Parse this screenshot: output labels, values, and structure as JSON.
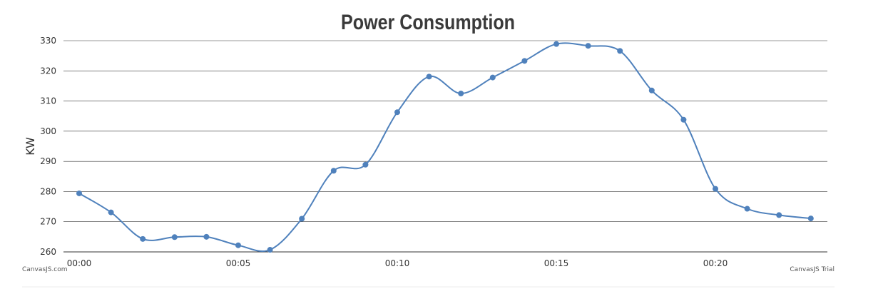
{
  "chart_data": {
    "type": "line",
    "title": "Power Consumption",
    "xlabel": "",
    "ylabel": "KW",
    "ylim": [
      260,
      330
    ],
    "yticks": [
      260,
      270,
      280,
      290,
      300,
      310,
      320,
      330
    ],
    "x_tick_labels": [
      "00:00",
      "00:05",
      "00:10",
      "00:15",
      "00:20"
    ],
    "x_tick_positions": [
      0,
      5,
      10,
      15,
      20
    ],
    "x": [
      "00:00",
      "00:01",
      "00:02",
      "00:03",
      "00:04",
      "00:05",
      "00:06",
      "00:07",
      "00:08",
      "00:09",
      "00:10",
      "00:11",
      "00:12",
      "00:13",
      "00:14",
      "00:15",
      "00:16",
      "00:17",
      "00:18",
      "00:19",
      "00:20",
      "00:21",
      "00:22",
      "00:23"
    ],
    "series": [
      {
        "values": [
          279.4,
          273.1,
          264.3,
          264.9,
          265.0,
          262.2,
          260.7,
          271.0,
          286.9,
          288.9,
          306.3,
          318.1,
          312.5,
          317.8,
          323.3,
          328.9,
          328.3,
          326.6,
          313.5,
          303.8,
          280.9,
          274.3,
          272.2,
          271.1
        ]
      }
    ],
    "grid": true,
    "legend": "none"
  },
  "colors": {
    "series": "#4f81bc",
    "grid": "#333333",
    "axis": "#333333"
  },
  "credits": {
    "left": "CanvasJS.com",
    "right": "CanvasJS Trial"
  }
}
